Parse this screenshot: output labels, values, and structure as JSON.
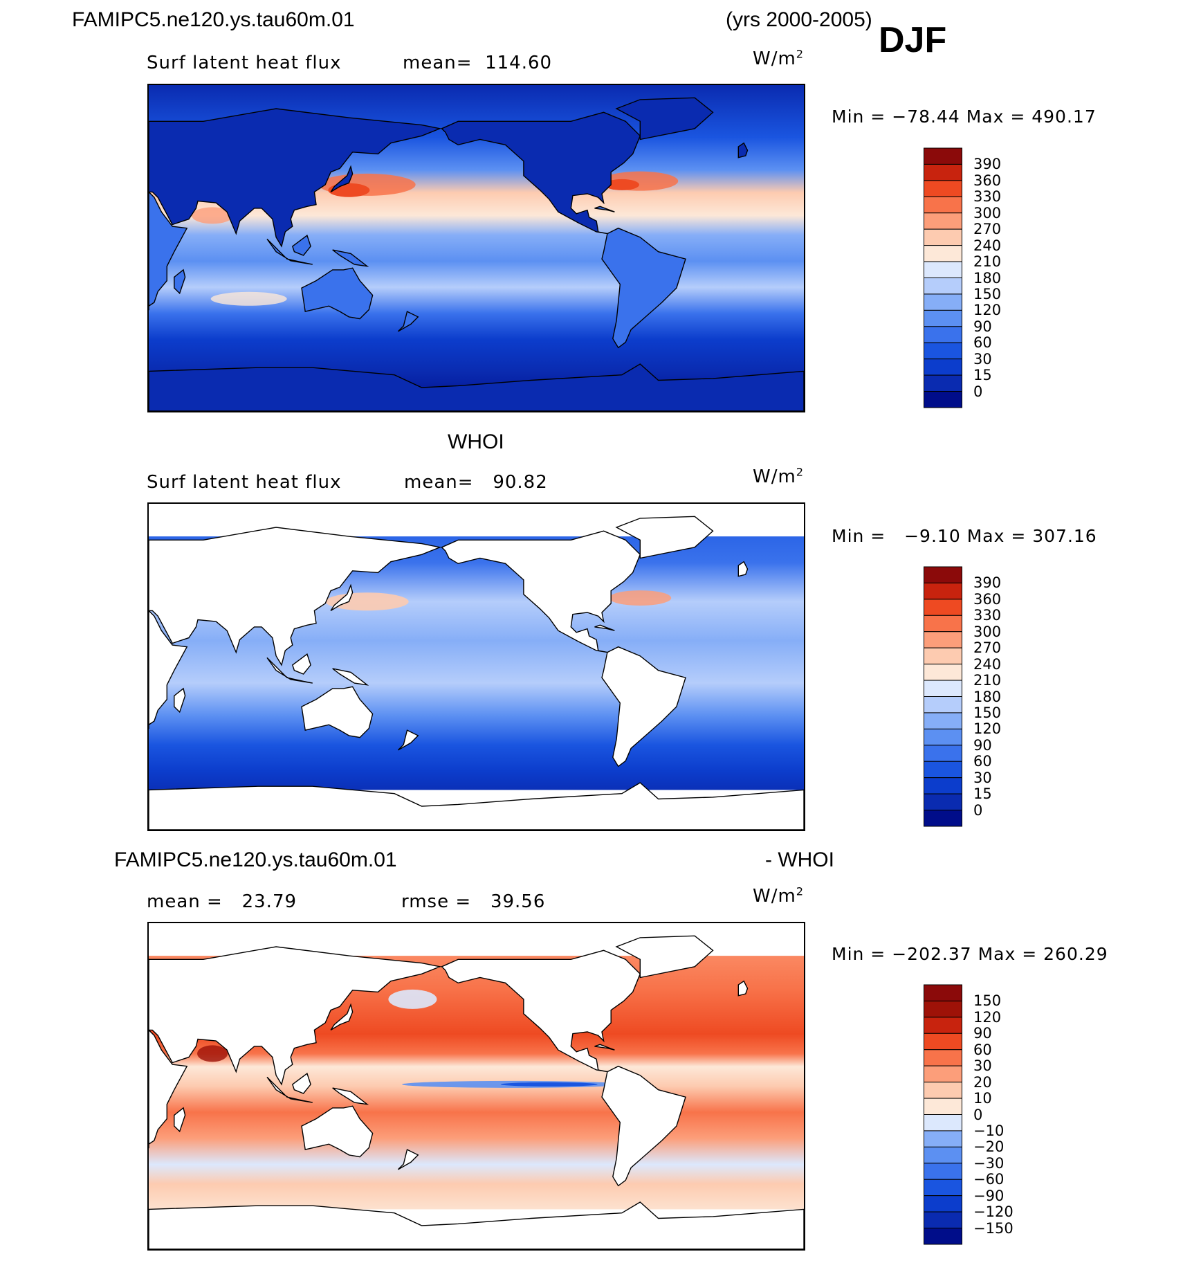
{
  "header": {
    "case_name": "FAMIPC5.ne120.ys.tau60m.01",
    "years": "(yrs 2000-2005)",
    "season": "DJF"
  },
  "panels": [
    {
      "id": "model",
      "variable": "Surf latent heat flux",
      "stat_label": "mean=",
      "stat_value": "114.60",
      "units_base": "W/m",
      "units_exp": "2",
      "min_label": "Min =",
      "min_value": "−78.44",
      "max_label": "Max =",
      "max_value": "490.17"
    },
    {
      "id": "obs",
      "title": "WHOI",
      "variable": "Surf latent heat flux",
      "stat_label": "mean=",
      "stat_value": "90.82",
      "units_base": "W/m",
      "units_exp": "2",
      "min_label": "Min =",
      "min_value": "−9.10",
      "max_label": "Max =",
      "max_value": "307.16"
    },
    {
      "id": "diff",
      "title_left": "FAMIPC5.ne120.ys.tau60m.01",
      "title_right": "- WHOI",
      "mean_label": "mean =",
      "mean_value": "23.79",
      "rmse_label": "rmse =",
      "rmse_value": "39.56",
      "units_base": "W/m",
      "units_exp": "2",
      "min_label": "Min =",
      "min_value": "−202.37",
      "max_label": "Max =",
      "max_value": "260.29"
    }
  ],
  "chart_data": [
    {
      "type": "heatmap",
      "title": "Surf latent heat flux",
      "dataset": "FAMIPC5.ne120.ys.tau60m.01",
      "season": "DJF",
      "units": "W/m2",
      "mean": 114.6,
      "min": -78.44,
      "max": 490.17,
      "colorbar_levels": [
        0,
        15,
        30,
        60,
        90,
        120,
        150,
        180,
        210,
        240,
        270,
        300,
        330,
        360,
        390
      ],
      "colorbar_labels": [
        "390",
        "360",
        "330",
        "300",
        "270",
        "240",
        "210",
        "180",
        "150",
        "120",
        "90",
        "60",
        "30",
        "15",
        "0"
      ],
      "colorbar_colors": [
        "#000d8a",
        "#0a2bb0",
        "#0c3dcc",
        "#1a55e0",
        "#3a72ec",
        "#5c90f2",
        "#86aef7",
        "#b5cdfb",
        "#dce8fd",
        "#fde8d8",
        "#fdcbb0",
        "#fc9e7a",
        "#f8734a",
        "#ee4a22",
        "#c8230e",
        "#8b0a0a"
      ]
    },
    {
      "type": "heatmap",
      "title": "Surf latent heat flux",
      "dataset": "WHOI",
      "units": "W/m2",
      "mean": 90.82,
      "min": -9.1,
      "max": 307.16,
      "colorbar_levels": [
        0,
        15,
        30,
        60,
        90,
        120,
        150,
        180,
        210,
        240,
        270,
        300,
        330,
        360,
        390
      ],
      "colorbar_labels": [
        "390",
        "360",
        "330",
        "300",
        "270",
        "240",
        "210",
        "180",
        "150",
        "120",
        "90",
        "60",
        "30",
        "15",
        "0"
      ],
      "colorbar_colors": [
        "#000d8a",
        "#0a2bb0",
        "#0c3dcc",
        "#1a55e0",
        "#3a72ec",
        "#5c90f2",
        "#86aef7",
        "#b5cdfb",
        "#dce8fd",
        "#fde8d8",
        "#fdcbb0",
        "#fc9e7a",
        "#f8734a",
        "#ee4a22",
        "#c8230e",
        "#8b0a0a"
      ]
    },
    {
      "type": "heatmap",
      "title": "FAMIPC5.ne120.ys.tau60m.01 - WHOI",
      "units": "W/m2",
      "mean": 23.79,
      "rmse": 39.56,
      "min": -202.37,
      "max": 260.29,
      "colorbar_levels": [
        -150,
        -120,
        -90,
        -60,
        -30,
        -20,
        -10,
        0,
        10,
        20,
        30,
        60,
        90,
        120,
        150
      ],
      "colorbar_labels": [
        "150",
        "120",
        "90",
        "60",
        "30",
        "20",
        "10",
        "0",
        "−10",
        "−20",
        "−30",
        "−60",
        "−90",
        "−120",
        "−150"
      ],
      "colorbar_colors": [
        "#000d8a",
        "#0a2bb0",
        "#0c3dcc",
        "#1a55e0",
        "#3a72ec",
        "#5c90f2",
        "#86aef7",
        "#dce8fd",
        "#fde8d8",
        "#fdcbb0",
        "#fc9e7a",
        "#f8734a",
        "#ee4a22",
        "#c8230e",
        "#9e1208",
        "#8b0a0a"
      ]
    }
  ]
}
